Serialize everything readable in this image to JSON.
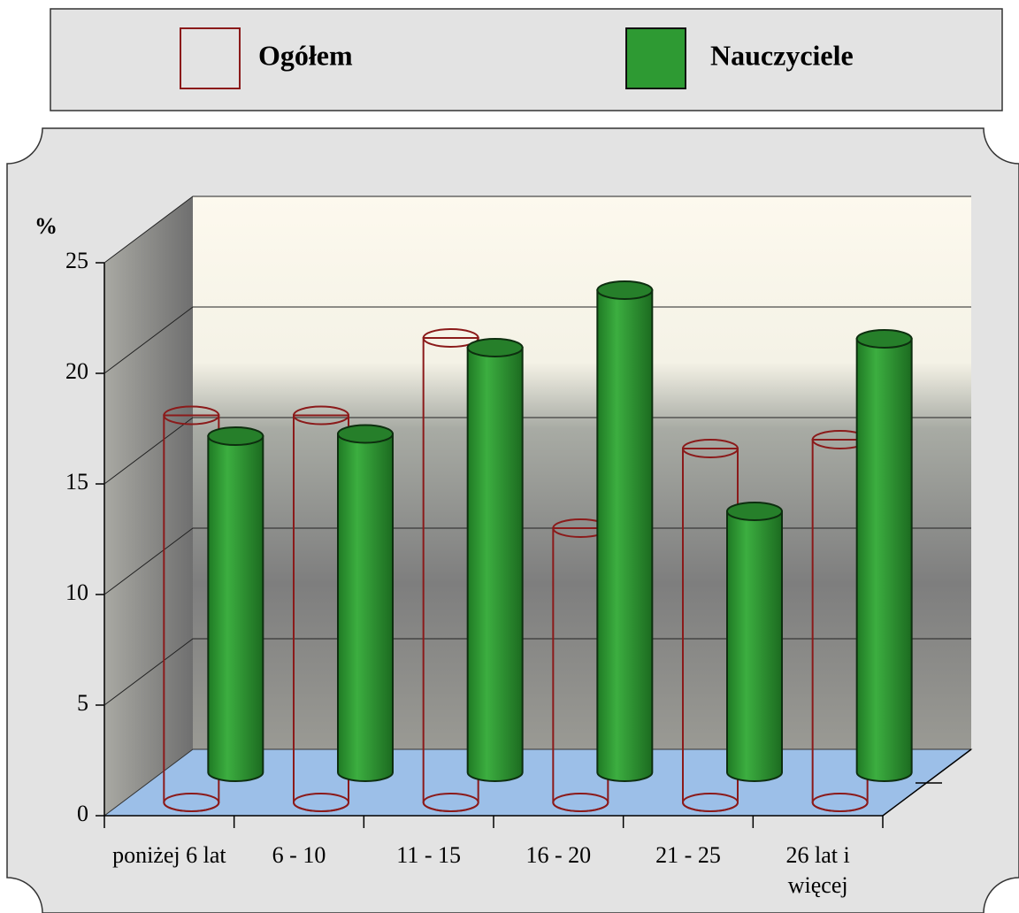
{
  "chart_data": {
    "type": "bar",
    "ylabel": "%",
    "categories": [
      "poniżej 6 lat",
      "6 - 10",
      "11 - 15",
      "16 - 20",
      "21 - 25",
      "26 lat i więcej"
    ],
    "series": [
      {
        "name": "Ogółem",
        "color": "#8b1a1a",
        "values": [
          17.5,
          17.5,
          21,
          12.4,
          16,
          16.4
        ]
      },
      {
        "name": "Nauczyciele",
        "color": "#2e9a33",
        "values": [
          15.2,
          15.3,
          19.2,
          21.8,
          11.8,
          19.6
        ]
      }
    ],
    "ylim": [
      0,
      25
    ],
    "yticks": [
      0,
      5,
      10,
      15,
      20,
      25
    ],
    "grid": true
  }
}
